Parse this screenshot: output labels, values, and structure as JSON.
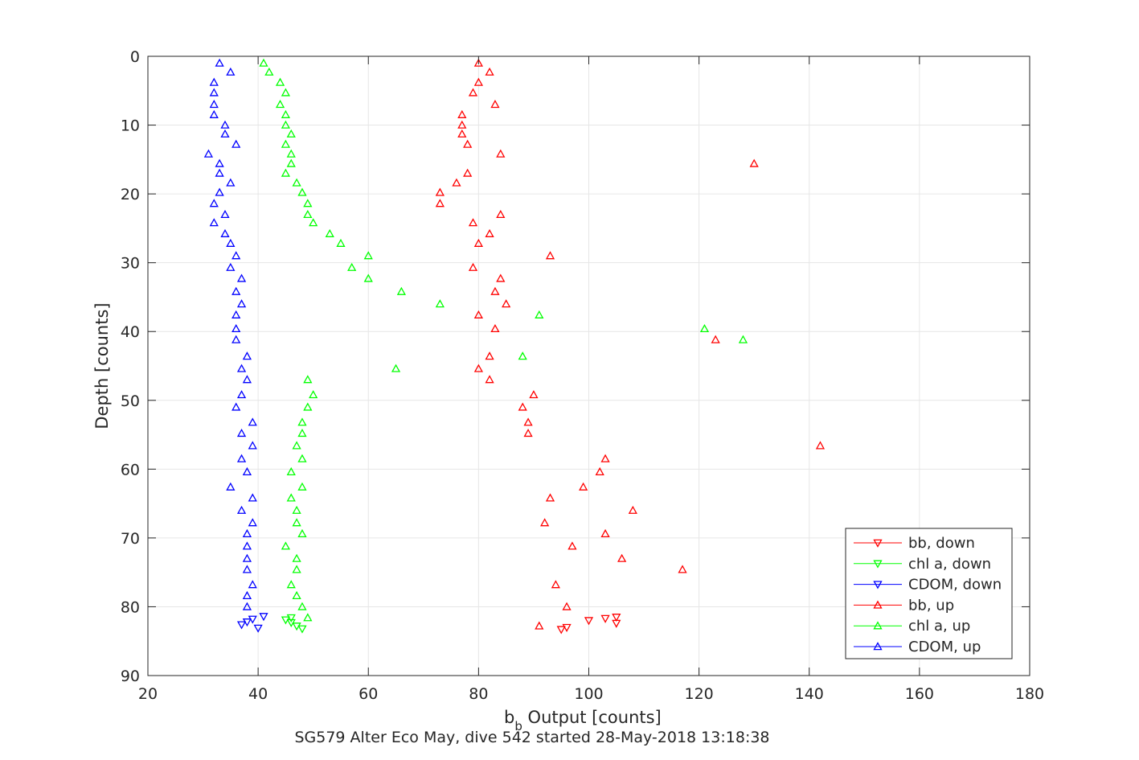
{
  "chart_data": {
    "type": "scatter",
    "xlabel_main": "b",
    "xlabel_sub": "b",
    "xlabel_rest": " Output [counts]",
    "ylabel": "Depth [counts]",
    "caption": "SG579 Alter Eco May, dive 542 started 28-May-2018 13:18:38",
    "xlim": [
      20,
      180
    ],
    "ylim": [
      0,
      90
    ],
    "y_reversed": true,
    "grid": true,
    "legend_position": "bottom-right",
    "xticks": [
      "20",
      "40",
      "60",
      "80",
      "100",
      "120",
      "140",
      "160",
      "180"
    ],
    "yticks": [
      "0",
      "10",
      "20",
      "30",
      "40",
      "50",
      "60",
      "70",
      "80",
      "90"
    ],
    "series": [
      {
        "name": "bb, down",
        "color": "#ff0000",
        "marker": "triangle-down",
        "points": [
          [
            105,
            81.5
          ],
          [
            103,
            81.7
          ],
          [
            100,
            82
          ],
          [
            105,
            82.4
          ],
          [
            96,
            83
          ],
          [
            95,
            83.3
          ]
        ]
      },
      {
        "name": "chl a, down",
        "color": "#00ff00",
        "marker": "triangle-down",
        "points": [
          [
            46,
            81.6
          ],
          [
            45,
            81.9
          ],
          [
            46,
            82.3
          ],
          [
            47,
            82.8
          ],
          [
            48,
            83.2
          ]
        ]
      },
      {
        "name": "CDOM, down",
        "color": "#0000ff",
        "marker": "triangle-down",
        "points": [
          [
            41,
            81.4
          ],
          [
            39,
            81.8
          ],
          [
            38,
            82.2
          ],
          [
            37,
            82.6
          ],
          [
            40,
            83.1
          ]
        ]
      },
      {
        "name": "bb, up",
        "color": "#ff0000",
        "marker": "triangle-up",
        "points": [
          [
            80,
            1
          ],
          [
            82,
            2.3
          ],
          [
            80,
            3.8
          ],
          [
            79,
            5.3
          ],
          [
            83,
            7
          ],
          [
            77,
            8.5
          ],
          [
            77,
            10
          ],
          [
            77,
            11.3
          ],
          [
            78,
            12.8
          ],
          [
            84,
            14.2
          ],
          [
            130,
            15.6
          ],
          [
            78,
            17
          ],
          [
            76,
            18.4
          ],
          [
            73,
            19.8
          ],
          [
            73,
            21.4
          ],
          [
            84,
            23
          ],
          [
            79,
            24.2
          ],
          [
            82,
            25.8
          ],
          [
            80,
            27.2
          ],
          [
            93,
            29
          ],
          [
            79,
            30.7
          ],
          [
            84,
            32.3
          ],
          [
            83,
            34.2
          ],
          [
            85,
            36
          ],
          [
            80,
            37.6
          ],
          [
            83,
            39.6
          ],
          [
            123,
            41.2
          ],
          [
            82,
            43.6
          ],
          [
            80,
            45.4
          ],
          [
            82,
            47
          ],
          [
            90,
            49.2
          ],
          [
            88,
            51
          ],
          [
            89,
            53.2
          ],
          [
            89,
            54.8
          ],
          [
            142,
            56.6
          ],
          [
            103,
            58.5
          ],
          [
            102,
            60.4
          ],
          [
            99,
            62.6
          ],
          [
            93,
            64.2
          ],
          [
            108,
            66
          ],
          [
            92,
            67.8
          ],
          [
            103,
            69.4
          ],
          [
            97,
            71.2
          ],
          [
            106,
            73
          ],
          [
            117,
            74.6
          ],
          [
            94,
            76.8
          ],
          [
            96,
            80
          ],
          [
            91,
            82.8
          ]
        ]
      },
      {
        "name": "chl a, up",
        "color": "#00ff00",
        "marker": "triangle-up",
        "points": [
          [
            41,
            1
          ],
          [
            42,
            2.3
          ],
          [
            44,
            3.8
          ],
          [
            45,
            5.3
          ],
          [
            44,
            7
          ],
          [
            45,
            8.5
          ],
          [
            45,
            10
          ],
          [
            46,
            11.3
          ],
          [
            45,
            12.8
          ],
          [
            46,
            14.2
          ],
          [
            46,
            15.6
          ],
          [
            45,
            17
          ],
          [
            47,
            18.4
          ],
          [
            48,
            19.8
          ],
          [
            49,
            21.4
          ],
          [
            49,
            23
          ],
          [
            50,
            24.2
          ],
          [
            53,
            25.8
          ],
          [
            55,
            27.2
          ],
          [
            60,
            29
          ],
          [
            57,
            30.7
          ],
          [
            60,
            32.3
          ],
          [
            66,
            34.2
          ],
          [
            73,
            36
          ],
          [
            91,
            37.6
          ],
          [
            121,
            39.6
          ],
          [
            128,
            41.2
          ],
          [
            88,
            43.6
          ],
          [
            65,
            45.4
          ],
          [
            49,
            47
          ],
          [
            50,
            49.2
          ],
          [
            49,
            51
          ],
          [
            48,
            53.2
          ],
          [
            48,
            54.8
          ],
          [
            47,
            56.6
          ],
          [
            48,
            58.5
          ],
          [
            46,
            60.4
          ],
          [
            48,
            62.6
          ],
          [
            46,
            64.2
          ],
          [
            47,
            66
          ],
          [
            47,
            67.8
          ],
          [
            48,
            69.4
          ],
          [
            45,
            71.2
          ],
          [
            47,
            73
          ],
          [
            47,
            74.6
          ],
          [
            46,
            76.8
          ],
          [
            47,
            78.4
          ],
          [
            48,
            80
          ],
          [
            49,
            81.6
          ]
        ]
      },
      {
        "name": "CDOM, up",
        "color": "#0000ff",
        "marker": "triangle-up",
        "points": [
          [
            33,
            1
          ],
          [
            35,
            2.3
          ],
          [
            32,
            3.8
          ],
          [
            32,
            5.3
          ],
          [
            32,
            7
          ],
          [
            32,
            8.5
          ],
          [
            34,
            10
          ],
          [
            34,
            11.3
          ],
          [
            36,
            12.8
          ],
          [
            31,
            14.2
          ],
          [
            33,
            15.6
          ],
          [
            33,
            17
          ],
          [
            35,
            18.4
          ],
          [
            33,
            19.8
          ],
          [
            32,
            21.4
          ],
          [
            34,
            23
          ],
          [
            32,
            24.2
          ],
          [
            34,
            25.8
          ],
          [
            35,
            27.2
          ],
          [
            36,
            29
          ],
          [
            35,
            30.7
          ],
          [
            37,
            32.3
          ],
          [
            36,
            34.2
          ],
          [
            37,
            36
          ],
          [
            36,
            37.6
          ],
          [
            36,
            39.6
          ],
          [
            36,
            41.2
          ],
          [
            38,
            43.6
          ],
          [
            37,
            45.4
          ],
          [
            38,
            47
          ],
          [
            37,
            49.2
          ],
          [
            36,
            51
          ],
          [
            39,
            53.2
          ],
          [
            37,
            54.8
          ],
          [
            39,
            56.6
          ],
          [
            37,
            58.5
          ],
          [
            38,
            60.4
          ],
          [
            35,
            62.6
          ],
          [
            39,
            64.2
          ],
          [
            37,
            66
          ],
          [
            39,
            67.8
          ],
          [
            38,
            69.4
          ],
          [
            38,
            71.2
          ],
          [
            38,
            73
          ],
          [
            38,
            74.6
          ],
          [
            39,
            76.8
          ],
          [
            38,
            78.4
          ],
          [
            38,
            80
          ]
        ]
      }
    ]
  }
}
